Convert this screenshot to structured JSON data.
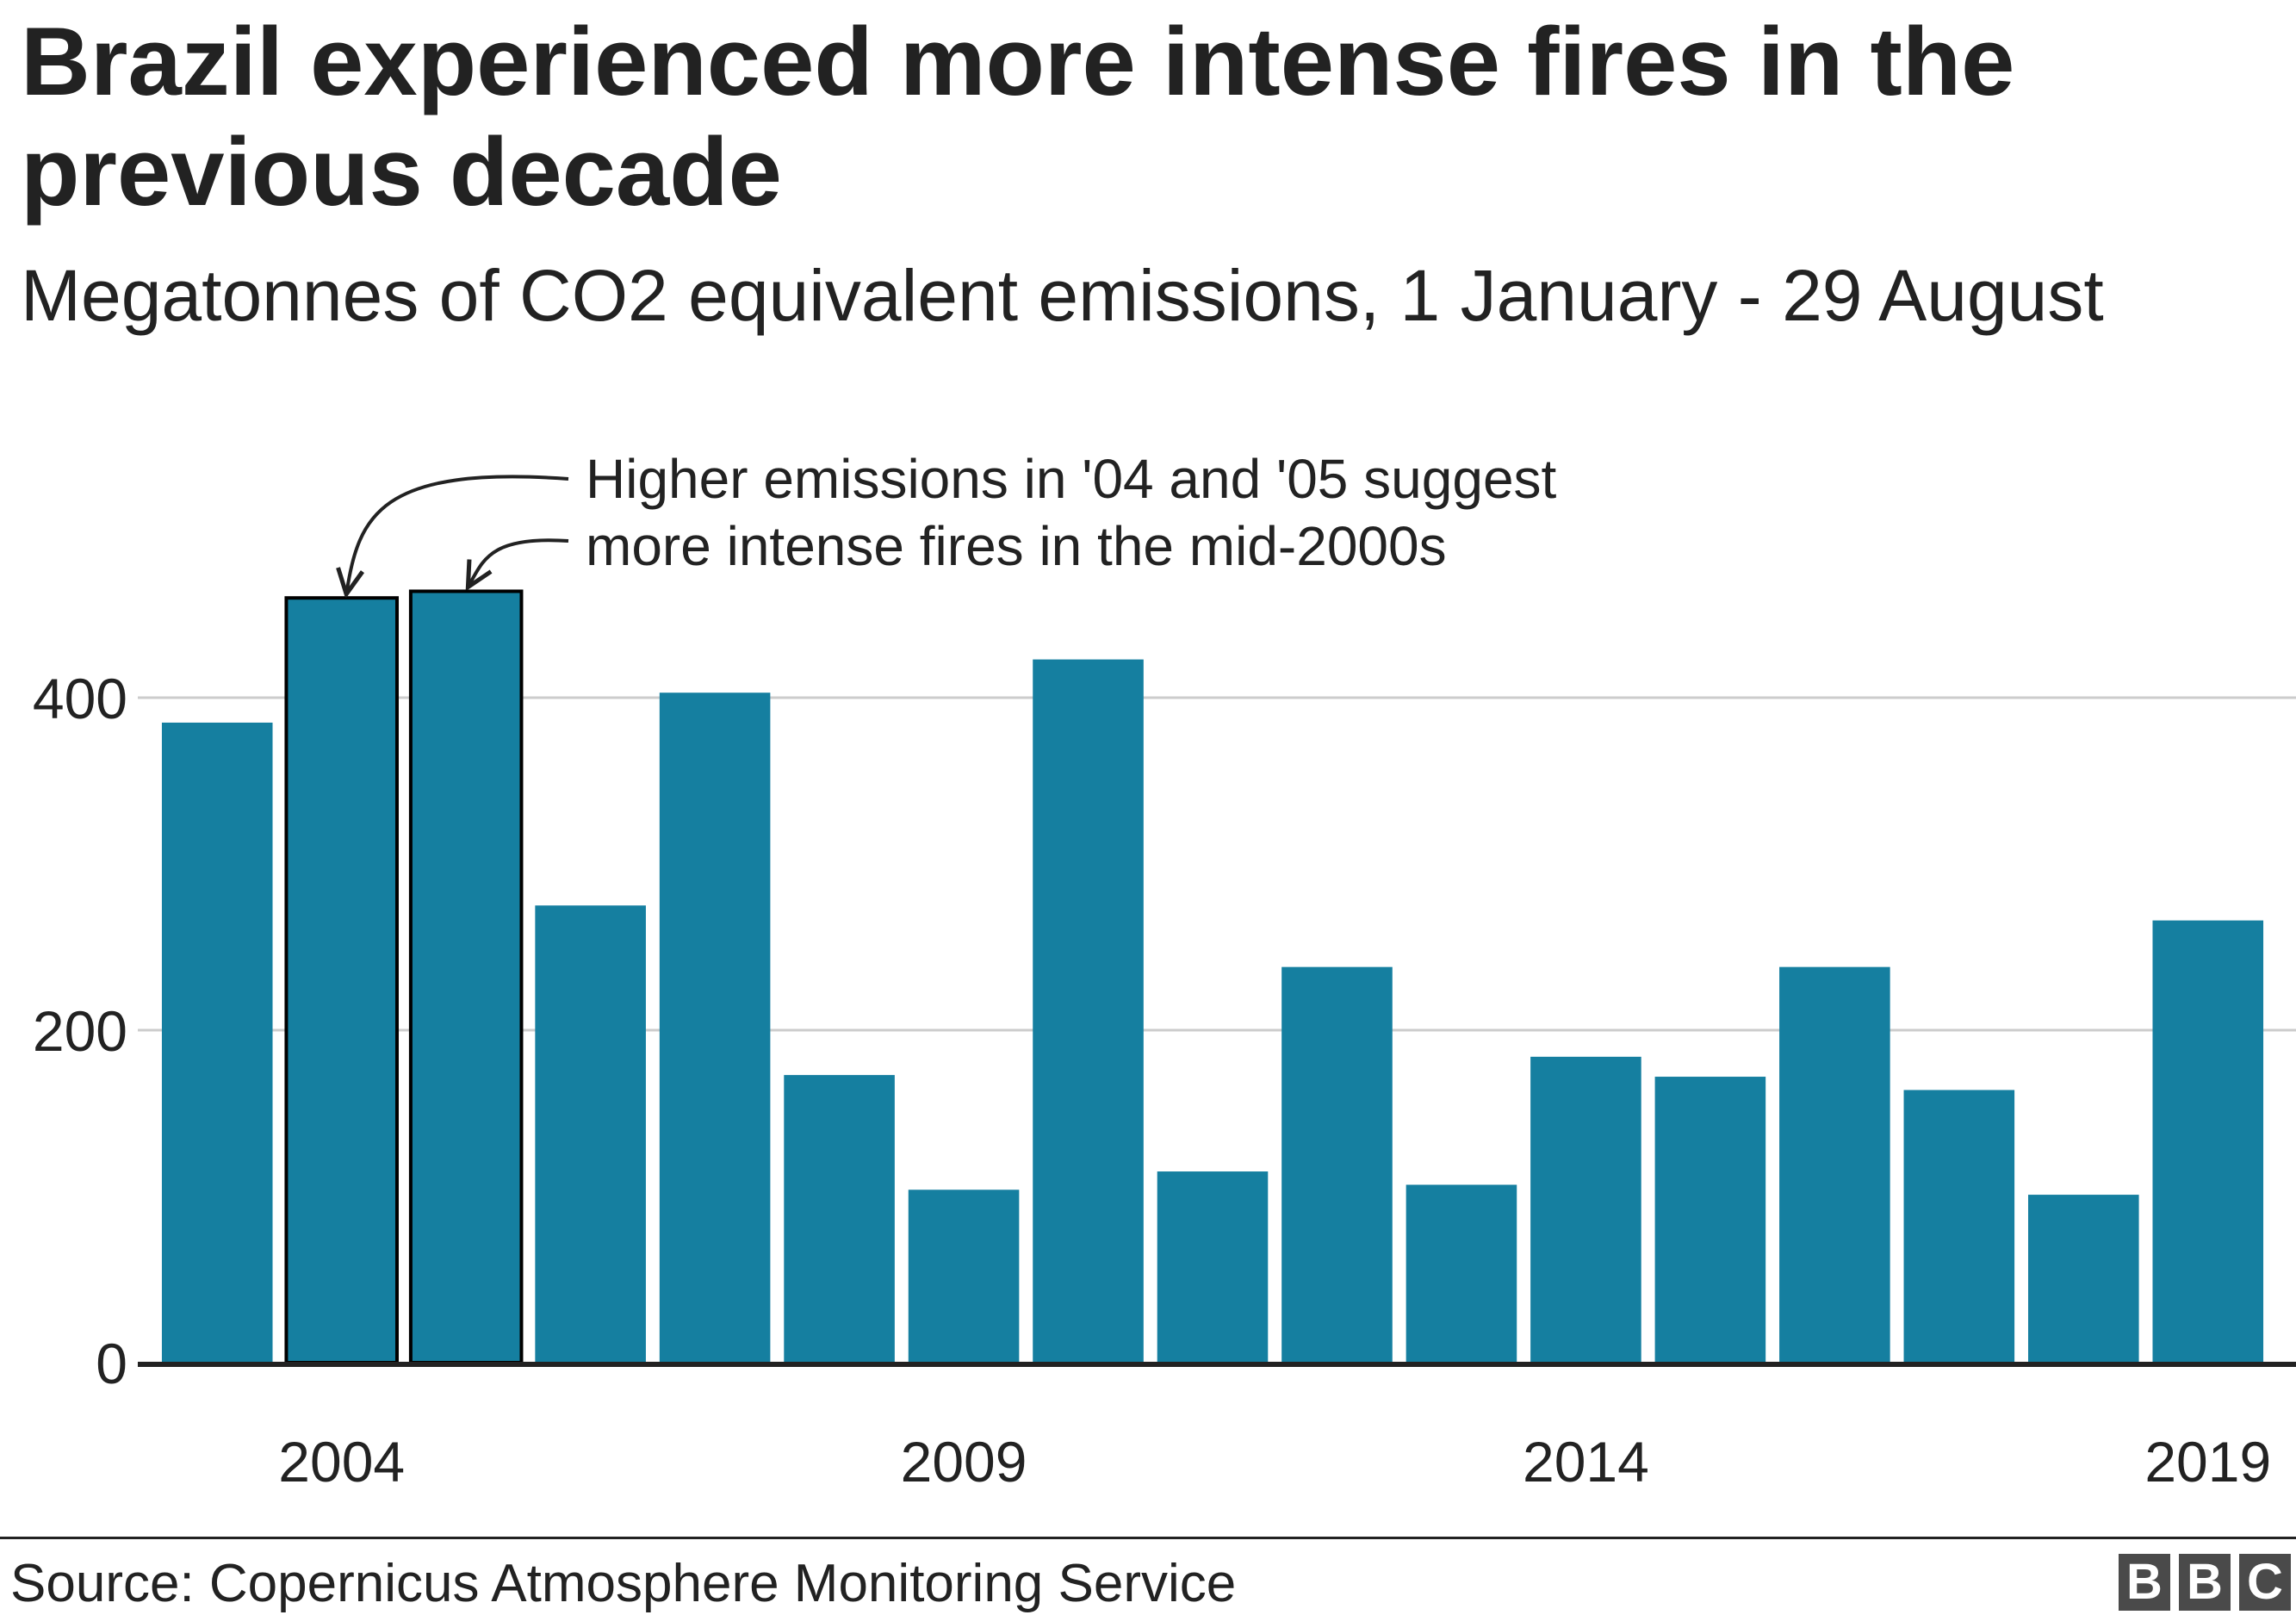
{
  "chart_data": {
    "type": "bar",
    "title": "Brazil experienced more intense fires in the previous decade",
    "subtitle": "Megatonnes of CO2 equivalent emissions, 1 January - 29 August",
    "categories": [
      2003,
      2004,
      2005,
      2006,
      2007,
      2008,
      2009,
      2010,
      2011,
      2012,
      2013,
      2014,
      2015,
      2016,
      2017,
      2018,
      2019
    ],
    "x_tick_labels": [
      "2004",
      "2009",
      "2014",
      "2019"
    ],
    "x_tick_values": [
      2004,
      2009,
      2014,
      2019
    ],
    "values": [
      385,
      460,
      464,
      275,
      403,
      173,
      104,
      423,
      115,
      238,
      107,
      184,
      172,
      238,
      164,
      101,
      266
    ],
    "highlighted": [
      2004,
      2005
    ],
    "ylim": [
      0,
      470
    ],
    "y_ticks": [
      0,
      200,
      400
    ],
    "y_tick_labels": [
      "0",
      "200",
      "400"
    ],
    "grid": true,
    "colors": {
      "bar": "#157fa0",
      "outline": "#000000",
      "grid": "#cccccc",
      "axis": "#222222"
    },
    "annotation": {
      "lines": [
        "Higher emissions in '04 and '05 suggest",
        "more intense fires in the mid-2000s"
      ],
      "targets": [
        2004,
        2005
      ]
    }
  },
  "footer": {
    "source": "Source: Copernicus Atmosphere Monitoring Service",
    "logo_letters": [
      "B",
      "B",
      "C"
    ]
  }
}
